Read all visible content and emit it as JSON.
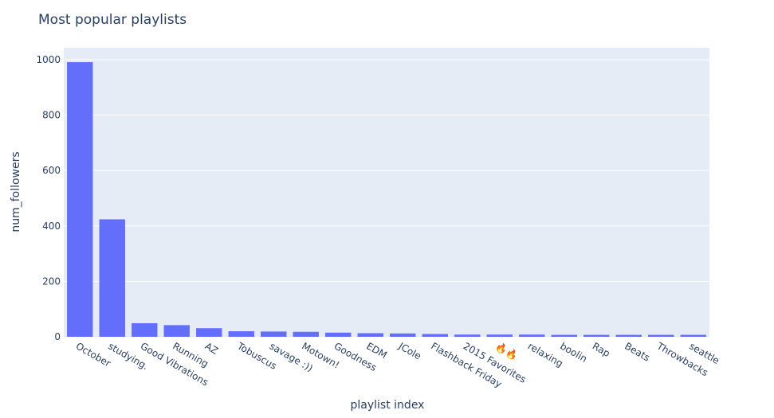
{
  "chart_data": {
    "type": "bar",
    "title": "Most popular playlists",
    "xlabel": "playlist index",
    "ylabel": "num_followers",
    "categories": [
      "October",
      "studying.",
      "Good Vibrations",
      "Running",
      "AZ",
      "Tobuscus",
      "savage :))",
      "Motown!",
      "Goodness",
      "EDM",
      "JCole",
      "Flashback Friday",
      "2015 Favorites",
      "🔥🔥",
      "relaxing",
      "boolin",
      "Rap",
      "Beats",
      "Throwbacks",
      "seattle"
    ],
    "values": [
      991,
      424,
      49,
      42,
      31,
      20,
      19,
      18,
      15,
      13,
      12,
      10,
      8,
      8,
      8,
      7,
      7,
      7,
      7,
      7
    ],
    "ylim": [
      0,
      1043
    ],
    "yticks": [
      0,
      200,
      400,
      600,
      800,
      1000
    ],
    "grid": true,
    "colors": {
      "bar": "#636efa",
      "plot_bg": "#e5ecf6",
      "grid": "#ffffff",
      "text": "#2a3f5f"
    }
  }
}
